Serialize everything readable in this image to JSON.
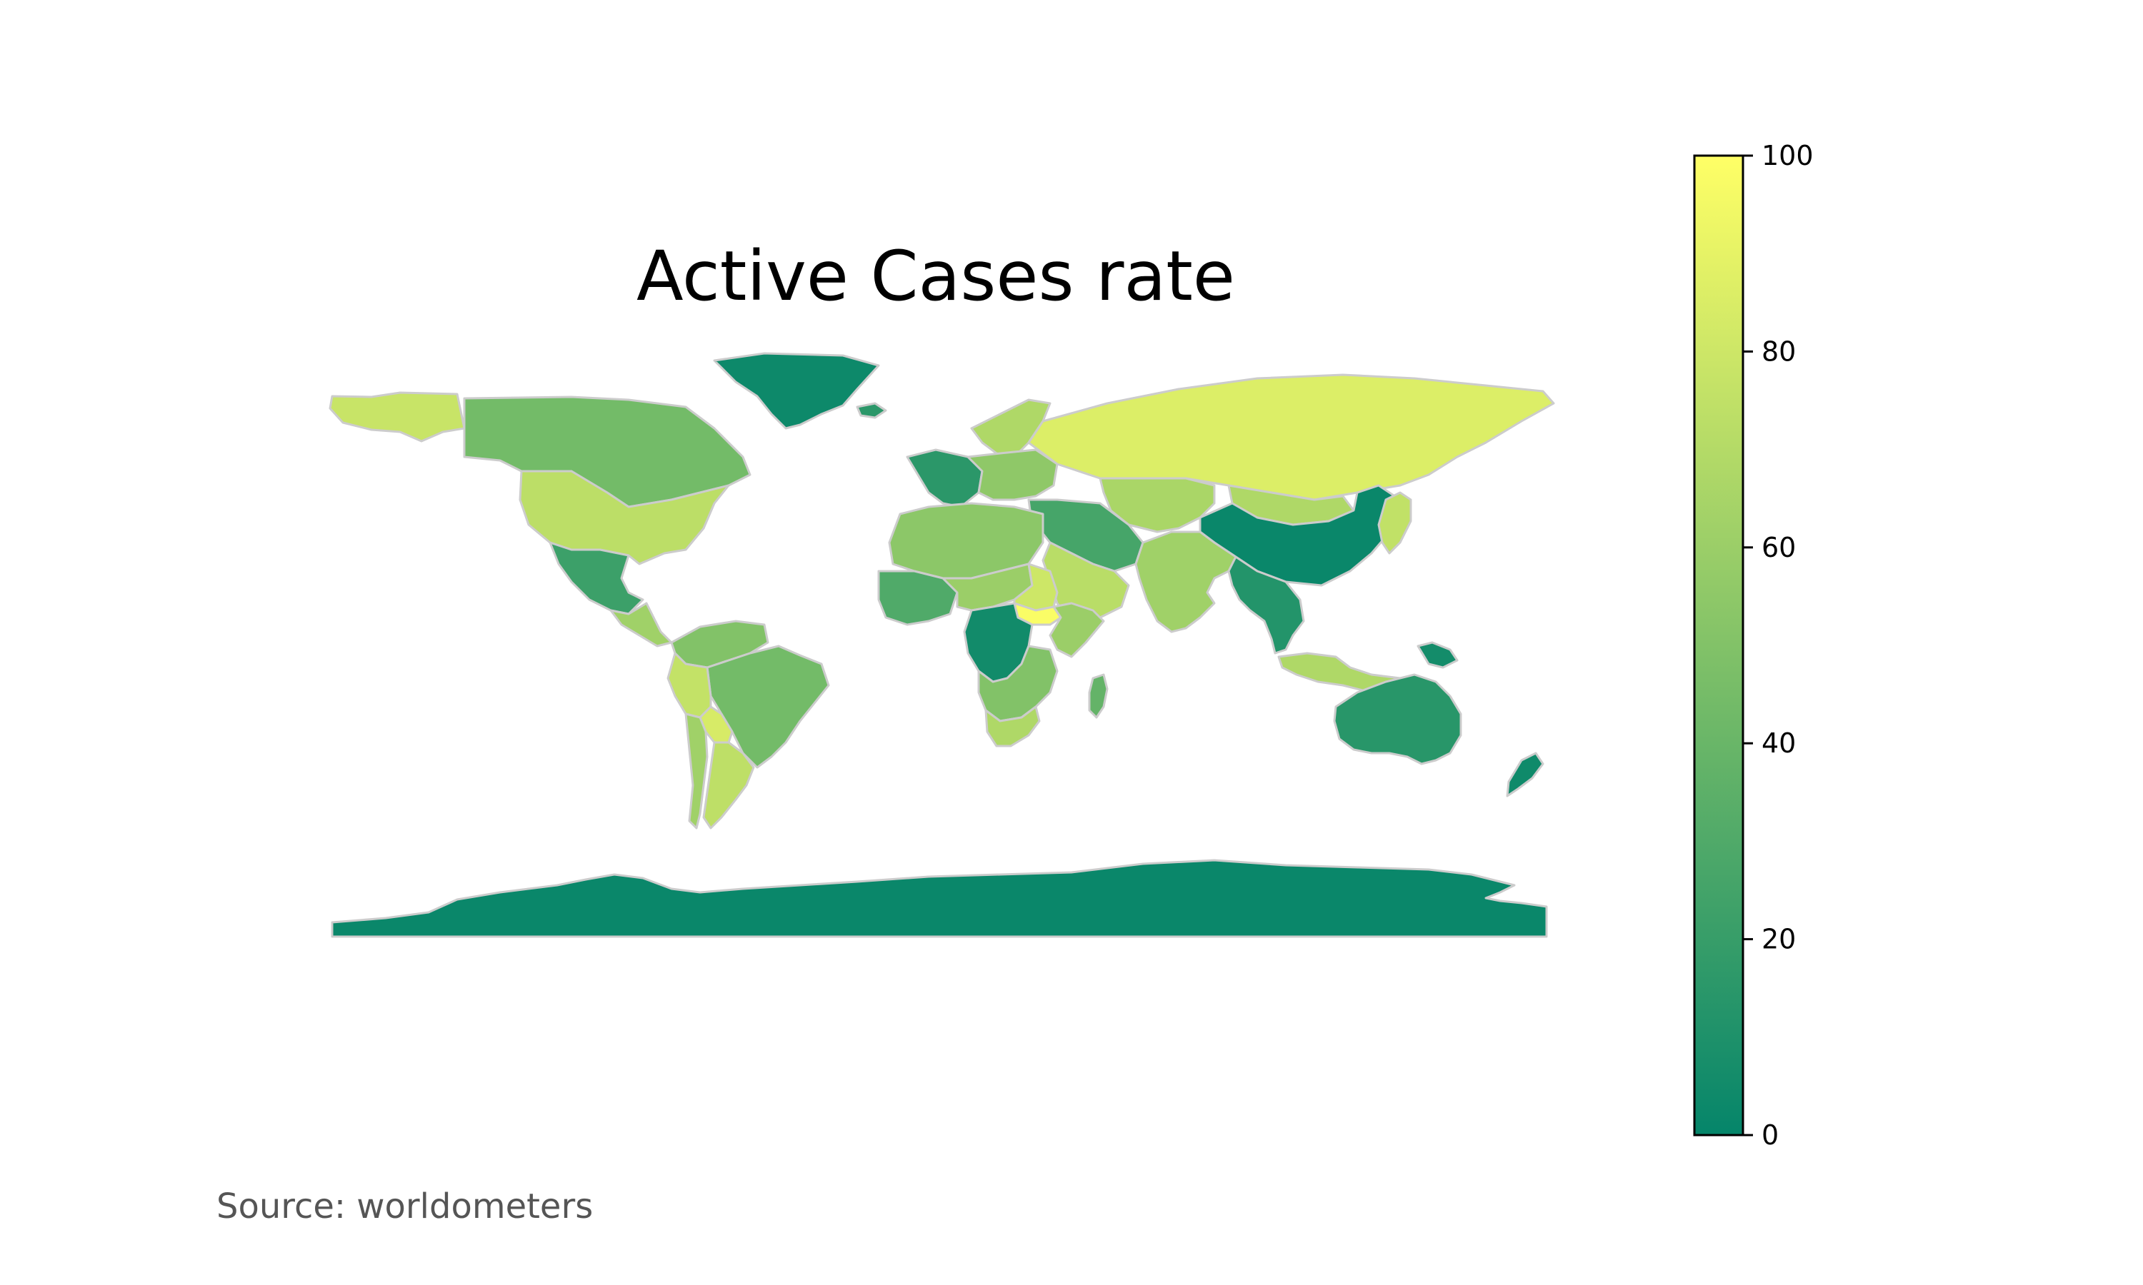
{
  "title": "Active Cases rate",
  "source": "Source: worldometers",
  "colors": {
    "scale_low": "#05856a",
    "scale_high": "#ffff66",
    "border": "#cccccc",
    "background": "#ffffff"
  },
  "colorbar": {
    "min": 0,
    "max": 100,
    "ticks": [
      {
        "value": 0,
        "label": "0"
      },
      {
        "value": 20,
        "label": "20"
      },
      {
        "value": 40,
        "label": "40"
      },
      {
        "value": 60,
        "label": "60"
      },
      {
        "value": 80,
        "label": "80"
      },
      {
        "value": 100,
        "label": "100"
      }
    ]
  },
  "regions": [
    {
      "name": "alaska",
      "rate": 78
    },
    {
      "name": "canada",
      "rate": 44
    },
    {
      "name": "greenland",
      "rate": 3
    },
    {
      "name": "usa",
      "rate": 73
    },
    {
      "name": "mexico",
      "rate": 22
    },
    {
      "name": "central-america",
      "rate": 62
    },
    {
      "name": "colombia-venezuela",
      "rate": 50
    },
    {
      "name": "brazil",
      "rate": 44
    },
    {
      "name": "peru",
      "rate": 76
    },
    {
      "name": "bolivia",
      "rate": 84
    },
    {
      "name": "argentina",
      "rate": 74
    },
    {
      "name": "chile",
      "rate": 62
    },
    {
      "name": "iceland",
      "rate": 15
    },
    {
      "name": "scandinavia",
      "rate": 68
    },
    {
      "name": "western-europe",
      "rate": 15
    },
    {
      "name": "eastern-europe",
      "rate": 55
    },
    {
      "name": "russia",
      "rate": 86
    },
    {
      "name": "kazakhstan-central-asia",
      "rate": 66
    },
    {
      "name": "mongolia",
      "rate": 68
    },
    {
      "name": "china",
      "rate": 2
    },
    {
      "name": "middle-east",
      "rate": 26
    },
    {
      "name": "arabia",
      "rate": 72
    },
    {
      "name": "india",
      "rate": 62
    },
    {
      "name": "southeast-asia",
      "rate": 12
    },
    {
      "name": "japan",
      "rate": 75
    },
    {
      "name": "indonesia",
      "rate": 68
    },
    {
      "name": "north-africa",
      "rate": 54
    },
    {
      "name": "west-africa",
      "rate": 30
    },
    {
      "name": "sahel",
      "rate": 60
    },
    {
      "name": "sudan",
      "rate": 80
    },
    {
      "name": "south-sudan",
      "rate": 98
    },
    {
      "name": "horn-of-africa",
      "rate": 60
    },
    {
      "name": "central-africa",
      "rate": 5
    },
    {
      "name": "southern-africa",
      "rate": 50
    },
    {
      "name": "south-africa",
      "rate": 68
    },
    {
      "name": "madagascar",
      "rate": 38
    },
    {
      "name": "australia",
      "rate": 14
    },
    {
      "name": "new-zealand",
      "rate": 4
    },
    {
      "name": "papua-new-guinea",
      "rate": 6
    },
    {
      "name": "antarctica",
      "rate": 2
    }
  ]
}
